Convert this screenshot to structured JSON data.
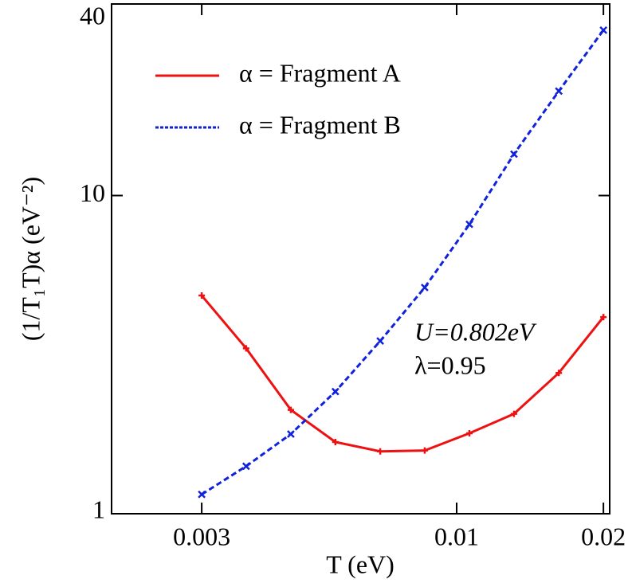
{
  "chart_data": {
    "type": "line",
    "xlabel": "T (eV)",
    "ylabel": "(1/T₁T)α (eV⁻²)",
    "x": [
      0.003,
      0.0037,
      0.00457,
      0.00564,
      0.00697,
      0.0086,
      0.01062,
      0.01311,
      0.0162,
      0.02
    ],
    "series": [
      {
        "name": "α = Fragment A",
        "color": "#ee1111",
        "values": [
          4.85,
          3.31,
          2.12,
          1.68,
          1.57,
          1.58,
          1.79,
          2.06,
          2.77,
          4.15
        ]
      },
      {
        "name": "α = Fragment B",
        "color": "#1122dd",
        "values": [
          1.15,
          1.41,
          1.78,
          2.42,
          3.49,
          5.14,
          8.12,
          13.5,
          21.3,
          33.1
        ]
      }
    ],
    "xlim": [
      0.00196,
      0.0206
    ],
    "xticks": [
      0.003,
      0.01,
      0.02
    ],
    "xscale": "log",
    "ylim": [
      1,
      40
    ],
    "yticks": [
      1,
      10,
      40
    ],
    "yscale": "log",
    "legend": "upper left",
    "annotations": [
      "U=0.802eV",
      "λ=0.95"
    ]
  }
}
